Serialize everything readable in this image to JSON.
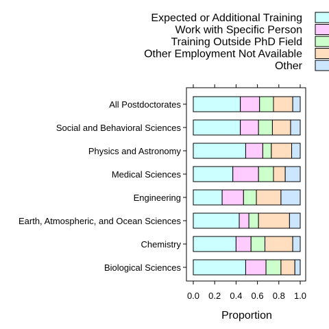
{
  "chart_data": {
    "type": "bar",
    "orientation": "horizontal",
    "stacked": true,
    "xlabel": "Proportion",
    "xlim": [
      0,
      1
    ],
    "xticks": [
      "0.0",
      "0.2",
      "0.4",
      "0.6",
      "0.8",
      "1.0"
    ],
    "legend_position": "top-right",
    "categories": [
      "All Postdoctorates",
      "Social and Behavioral Sciences",
      "Physics and Astronomy",
      "Medical Sciences",
      "Engineering",
      "Earth, Atmospheric, and Ocean Sciences",
      "Chemistry",
      "Biological Sciences"
    ],
    "series": [
      {
        "name": "Expected or Additional Training",
        "color": "#ccffff",
        "values": [
          0.44,
          0.44,
          0.49,
          0.37,
          0.27,
          0.43,
          0.4,
          0.49
        ]
      },
      {
        "name": "Work with Specific Person",
        "color": "#ffccff",
        "values": [
          0.18,
          0.17,
          0.16,
          0.24,
          0.2,
          0.09,
          0.14,
          0.19
        ]
      },
      {
        "name": "Training Outside PhD Field",
        "color": "#ccffcc",
        "values": [
          0.13,
          0.13,
          0.08,
          0.14,
          0.12,
          0.09,
          0.13,
          0.14
        ]
      },
      {
        "name": "Other Employment Not Available",
        "color": "#ffdec0",
        "values": [
          0.18,
          0.17,
          0.19,
          0.11,
          0.23,
          0.29,
          0.26,
          0.13
        ]
      },
      {
        "name": "Other",
        "color": "#cce6ff",
        "values": [
          0.07,
          0.09,
          0.08,
          0.14,
          0.18,
          0.1,
          0.07,
          0.05
        ]
      }
    ]
  }
}
